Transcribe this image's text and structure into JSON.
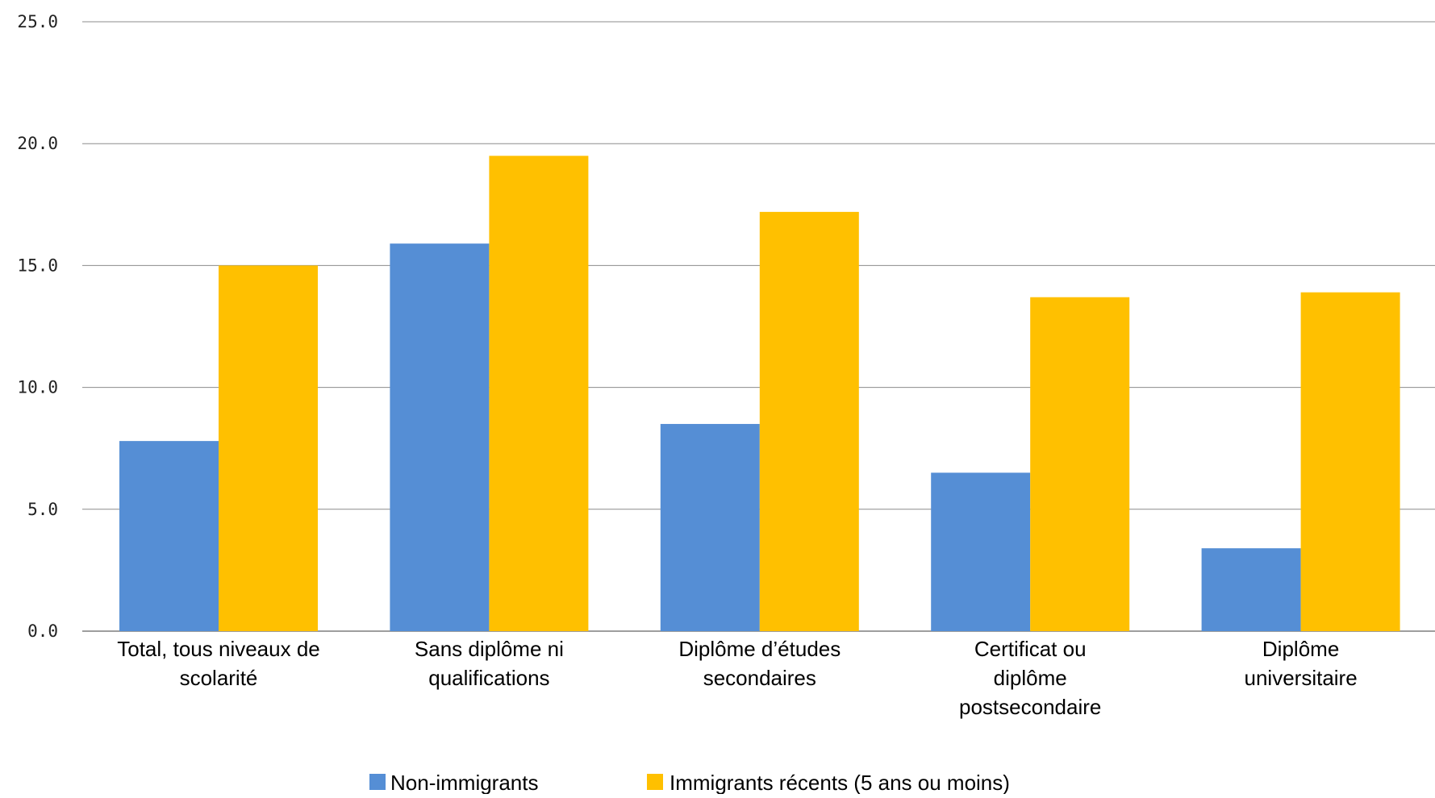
{
  "chart_data": {
    "type": "bar",
    "categories": [
      [
        "Total, tous niveaux de",
        "scolarité"
      ],
      [
        "Sans diplôme ni",
        "qualifications"
      ],
      [
        "Diplôme d’études",
        "secondaires"
      ],
      [
        "Certificat ou",
        "diplôme",
        "postsecondaire"
      ],
      [
        "Diplôme",
        "universitaire"
      ]
    ],
    "series": [
      {
        "name": "Non-immigrants",
        "color": "#558ED5",
        "values": [
          7.8,
          15.9,
          8.5,
          6.5,
          3.4
        ]
      },
      {
        "name": "Immigrants récents (5 ans ou moins)",
        "color": "#FFC000",
        "values": [
          15.0,
          19.5,
          17.2,
          13.7,
          13.9
        ]
      }
    ],
    "title": "",
    "xlabel": "",
    "ylabel": "",
    "ylim": [
      0,
      25
    ],
    "yticks": [
      "0.0",
      "5.0",
      "10.0",
      "15.0",
      "20.0",
      "25.0"
    ],
    "grid": true,
    "legend_position": "bottom"
  }
}
